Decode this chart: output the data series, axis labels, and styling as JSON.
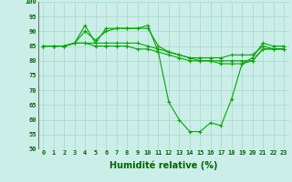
{
  "background_color": "#cceee8",
  "grid_color": "#aaddcc",
  "line_color": "#00aa00",
  "xlabel": "Humidité relative (%)",
  "xlim": [
    -0.5,
    23.5
  ],
  "ylim": [
    50,
    100
  ],
  "yticks": [
    50,
    55,
    60,
    65,
    70,
    75,
    80,
    85,
    90,
    95,
    100
  ],
  "xticks": [
    0,
    1,
    2,
    3,
    4,
    5,
    6,
    7,
    8,
    9,
    10,
    11,
    12,
    13,
    14,
    15,
    16,
    17,
    18,
    19,
    20,
    21,
    22,
    23
  ],
  "series": [
    {
      "x": [
        0,
        1,
        2,
        3,
        4,
        5,
        6,
        7,
        8,
        9,
        10,
        11,
        12,
        13,
        14,
        15,
        16,
        17,
        18,
        19,
        20,
        21,
        22,
        23
      ],
      "y": [
        85,
        85,
        85,
        86,
        92,
        86,
        91,
        91,
        91,
        91,
        92,
        83,
        66,
        60,
        56,
        56,
        59,
        58,
        67,
        79,
        81,
        86,
        85,
        85
      ]
    },
    {
      "x": [
        0,
        1,
        2,
        3,
        4,
        5,
        6,
        7,
        8,
        9,
        10,
        11,
        12,
        13,
        14,
        15,
        16,
        17,
        18,
        19,
        20,
        21,
        22,
        23
      ],
      "y": [
        85,
        85,
        85,
        86,
        90,
        87,
        90,
        91,
        91,
        91,
        91,
        85,
        83,
        82,
        81,
        81,
        81,
        81,
        82,
        82,
        82,
        85,
        84,
        84
      ]
    },
    {
      "x": [
        0,
        1,
        2,
        3,
        4,
        5,
        6,
        7,
        8,
        9,
        10,
        11,
        12,
        13,
        14,
        15,
        16,
        17,
        18,
        19,
        20,
        21,
        22,
        23
      ],
      "y": [
        85,
        85,
        85,
        86,
        86,
        86,
        86,
        86,
        86,
        86,
        85,
        84,
        83,
        82,
        81,
        80,
        80,
        80,
        80,
        80,
        80,
        84,
        84,
        84
      ]
    },
    {
      "x": [
        0,
        1,
        2,
        3,
        4,
        5,
        6,
        7,
        8,
        9,
        10,
        11,
        12,
        13,
        14,
        15,
        16,
        17,
        18,
        19,
        20,
        21,
        22,
        23
      ],
      "y": [
        85,
        85,
        85,
        86,
        86,
        85,
        85,
        85,
        85,
        84,
        84,
        83,
        82,
        81,
        80,
        80,
        80,
        79,
        79,
        79,
        80,
        84,
        84,
        84
      ]
    }
  ],
  "ylabel_color": "#006600",
  "ytick_color": "#006600",
  "xtick_color": "#006600",
  "xlabel_color": "#006600",
  "xlabel_fontsize": 7,
  "tick_fontsize": 5,
  "linewidth": 0.8,
  "markersize": 3,
  "markeredgewidth": 0.8
}
